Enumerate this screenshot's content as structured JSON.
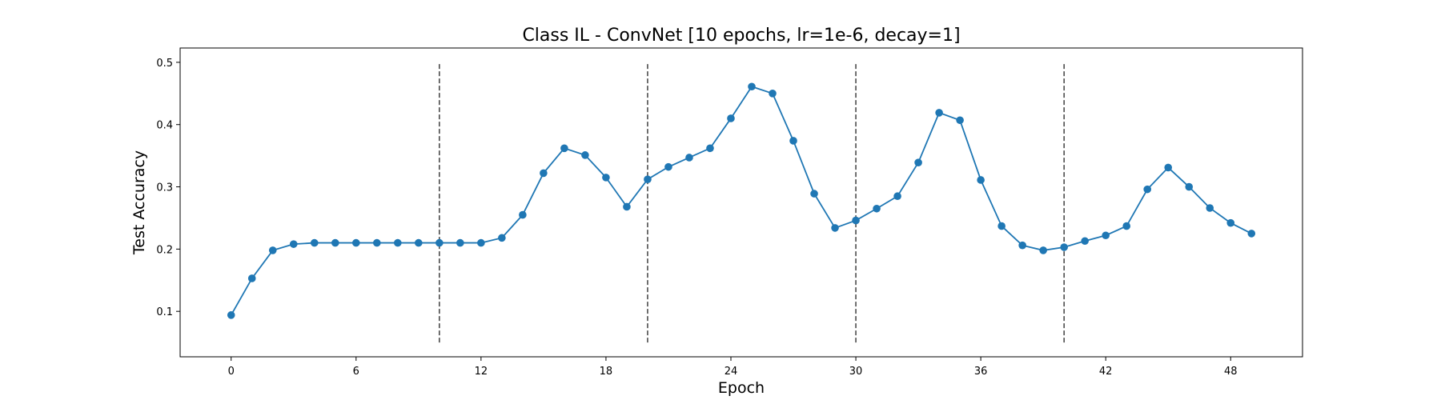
{
  "chart_data": {
    "type": "line",
    "title": "Class IL - ConvNet [10 epochs, lr=1e-6, decay=1]",
    "xlabel": "Epoch",
    "ylabel": "Test Accuracy",
    "xlim": [
      -2.45,
      51.45
    ],
    "ylim": [
      0.027,
      0.523
    ],
    "xticks": [
      0,
      6,
      12,
      18,
      24,
      30,
      36,
      42,
      48
    ],
    "xtick_labels": [
      "0",
      "6",
      "12",
      "18",
      "24",
      "30",
      "36",
      "42",
      "48"
    ],
    "yticks": [
      0.1,
      0.2,
      0.3,
      0.4,
      0.5
    ],
    "ytick_labels": [
      "0.1",
      "0.2",
      "0.3",
      "0.4",
      "0.5"
    ],
    "grid": false,
    "legend": false,
    "vlines": {
      "x": [
        10,
        20,
        30,
        40
      ],
      "ymin": 0.05,
      "ymax": 0.5,
      "color": "#404040",
      "style": "dashed"
    },
    "series": [
      {
        "color": "#1f77b4",
        "marker": "circle",
        "x": [
          0,
          1,
          2,
          3,
          4,
          5,
          6,
          7,
          8,
          9,
          10,
          11,
          12,
          13,
          14,
          15,
          16,
          17,
          18,
          19,
          20,
          21,
          22,
          23,
          24,
          25,
          26,
          27,
          28,
          29,
          30,
          31,
          32,
          33,
          34,
          35,
          36,
          37,
          38,
          39,
          40,
          41,
          42,
          43,
          44,
          45,
          46,
          47,
          48,
          49
        ],
        "y": [
          0.094,
          0.153,
          0.198,
          0.208,
          0.21,
          0.21,
          0.21,
          0.21,
          0.21,
          0.21,
          0.21,
          0.21,
          0.21,
          0.218,
          0.255,
          0.322,
          0.362,
          0.351,
          0.315,
          0.268,
          0.312,
          0.332,
          0.347,
          0.362,
          0.41,
          0.461,
          0.45,
          0.374,
          0.289,
          0.234,
          0.246,
          0.265,
          0.285,
          0.339,
          0.419,
          0.407,
          0.311,
          0.237,
          0.206,
          0.198,
          0.203,
          0.213,
          0.222,
          0.237,
          0.296,
          0.331,
          0.3,
          0.266,
          0.242,
          0.225
        ]
      }
    ]
  }
}
